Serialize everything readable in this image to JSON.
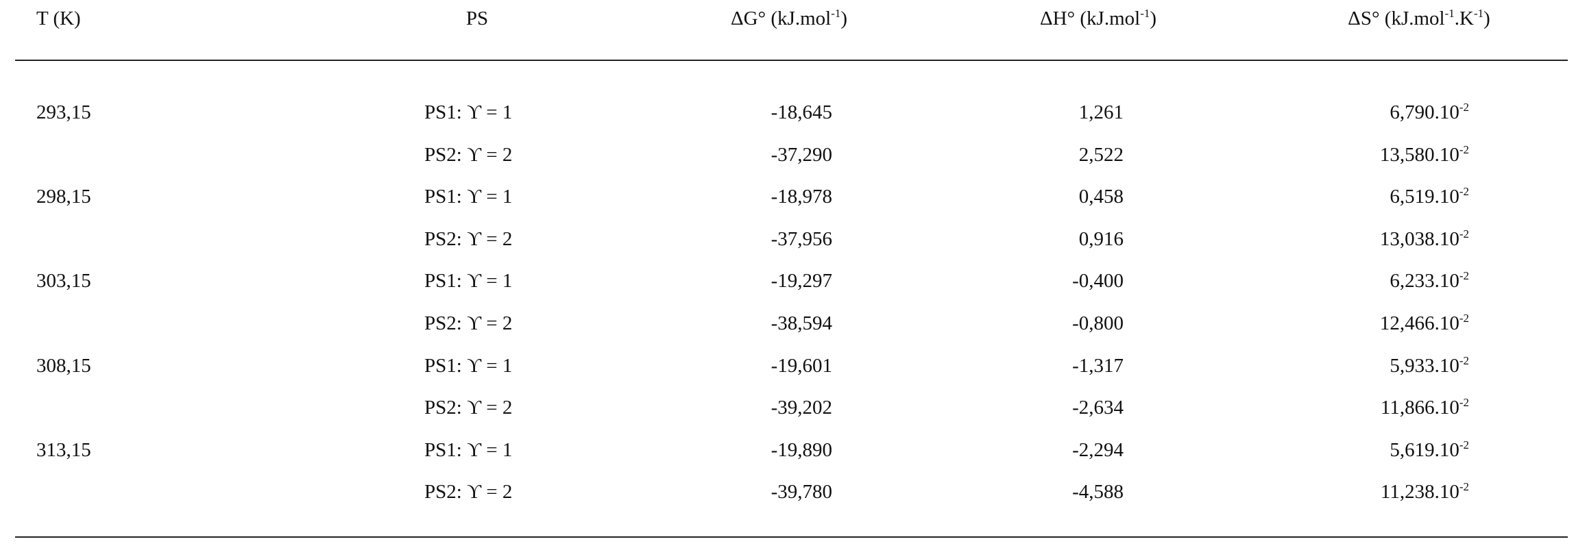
{
  "table": {
    "header": [
      [
        {
          "text": "T (K)"
        }
      ],
      [
        {
          "text": "PS"
        }
      ],
      [
        {
          "text": "ΔG° (kJ.mol"
        },
        {
          "text": "-1",
          "sup": true
        },
        {
          "text": ")"
        }
      ],
      [
        {
          "text": "ΔH° (kJ.mol"
        },
        {
          "text": "-1",
          "sup": true
        },
        {
          "text": ")"
        }
      ],
      [
        {
          "text": "ΔS° (kJ.mol"
        },
        {
          "text": "-1",
          "sup": true
        },
        {
          "text": ".K"
        },
        {
          "text": "-1",
          "sup": true
        },
        {
          "text": ")"
        }
      ]
    ],
    "groups": [
      {
        "T": "293,15",
        "rows": [
          {
            "ps": "PS1: ϒ = 1",
            "dG": "-18,645",
            "dH": "1,261",
            "dS": {
              "base": "6,790.10",
              "exp": "-2"
            }
          },
          {
            "ps": "PS2: ϒ = 2",
            "dG": "-37,290",
            "dH": "2,522",
            "dS": {
              "base": "13,580.10",
              "exp": "-2"
            }
          }
        ]
      },
      {
        "T": "298,15",
        "rows": [
          {
            "ps": "PS1: ϒ = 1",
            "dG": "-18,978",
            "dH": "0,458",
            "dS": {
              "base": "6,519.10",
              "exp": "-2"
            }
          },
          {
            "ps": "PS2: ϒ = 2",
            "dG": "-37,956",
            "dH": "0,916",
            "dS": {
              "base": "13,038.10",
              "exp": "-2"
            }
          }
        ]
      },
      {
        "T": "303,15",
        "rows": [
          {
            "ps": "PS1: ϒ = 1",
            "dG": "-19,297",
            "dH": "-0,400",
            "dS": {
              "base": "6,233.10",
              "exp": "-2"
            }
          },
          {
            "ps": "PS2: ϒ = 2",
            "dG": "-38,594",
            "dH": "-0,800",
            "dS": {
              "base": "12,466.10",
              "exp": "-2"
            }
          }
        ]
      },
      {
        "T": "308,15",
        "rows": [
          {
            "ps": "PS1: ϒ = 1",
            "dG": "-19,601",
            "dH": "-1,317",
            "dS": {
              "base": "5,933.10",
              "exp": "-2"
            }
          },
          {
            "ps": "PS2: ϒ = 2",
            "dG": "-39,202",
            "dH": "-2,634",
            "dS": {
              "base": "11,866.10",
              "exp": "-2"
            }
          }
        ]
      },
      {
        "T": "313,15",
        "rows": [
          {
            "ps": "PS1: ϒ = 1",
            "dG": "-19,890",
            "dH": "-2,294",
            "dS": {
              "base": "5,619.10",
              "exp": "-2"
            }
          },
          {
            "ps": "PS2: ϒ = 2",
            "dG": "-39,780",
            "dH": "-4,588",
            "dS": {
              "base": "11,238.10",
              "exp": "-2"
            }
          }
        ]
      }
    ]
  }
}
